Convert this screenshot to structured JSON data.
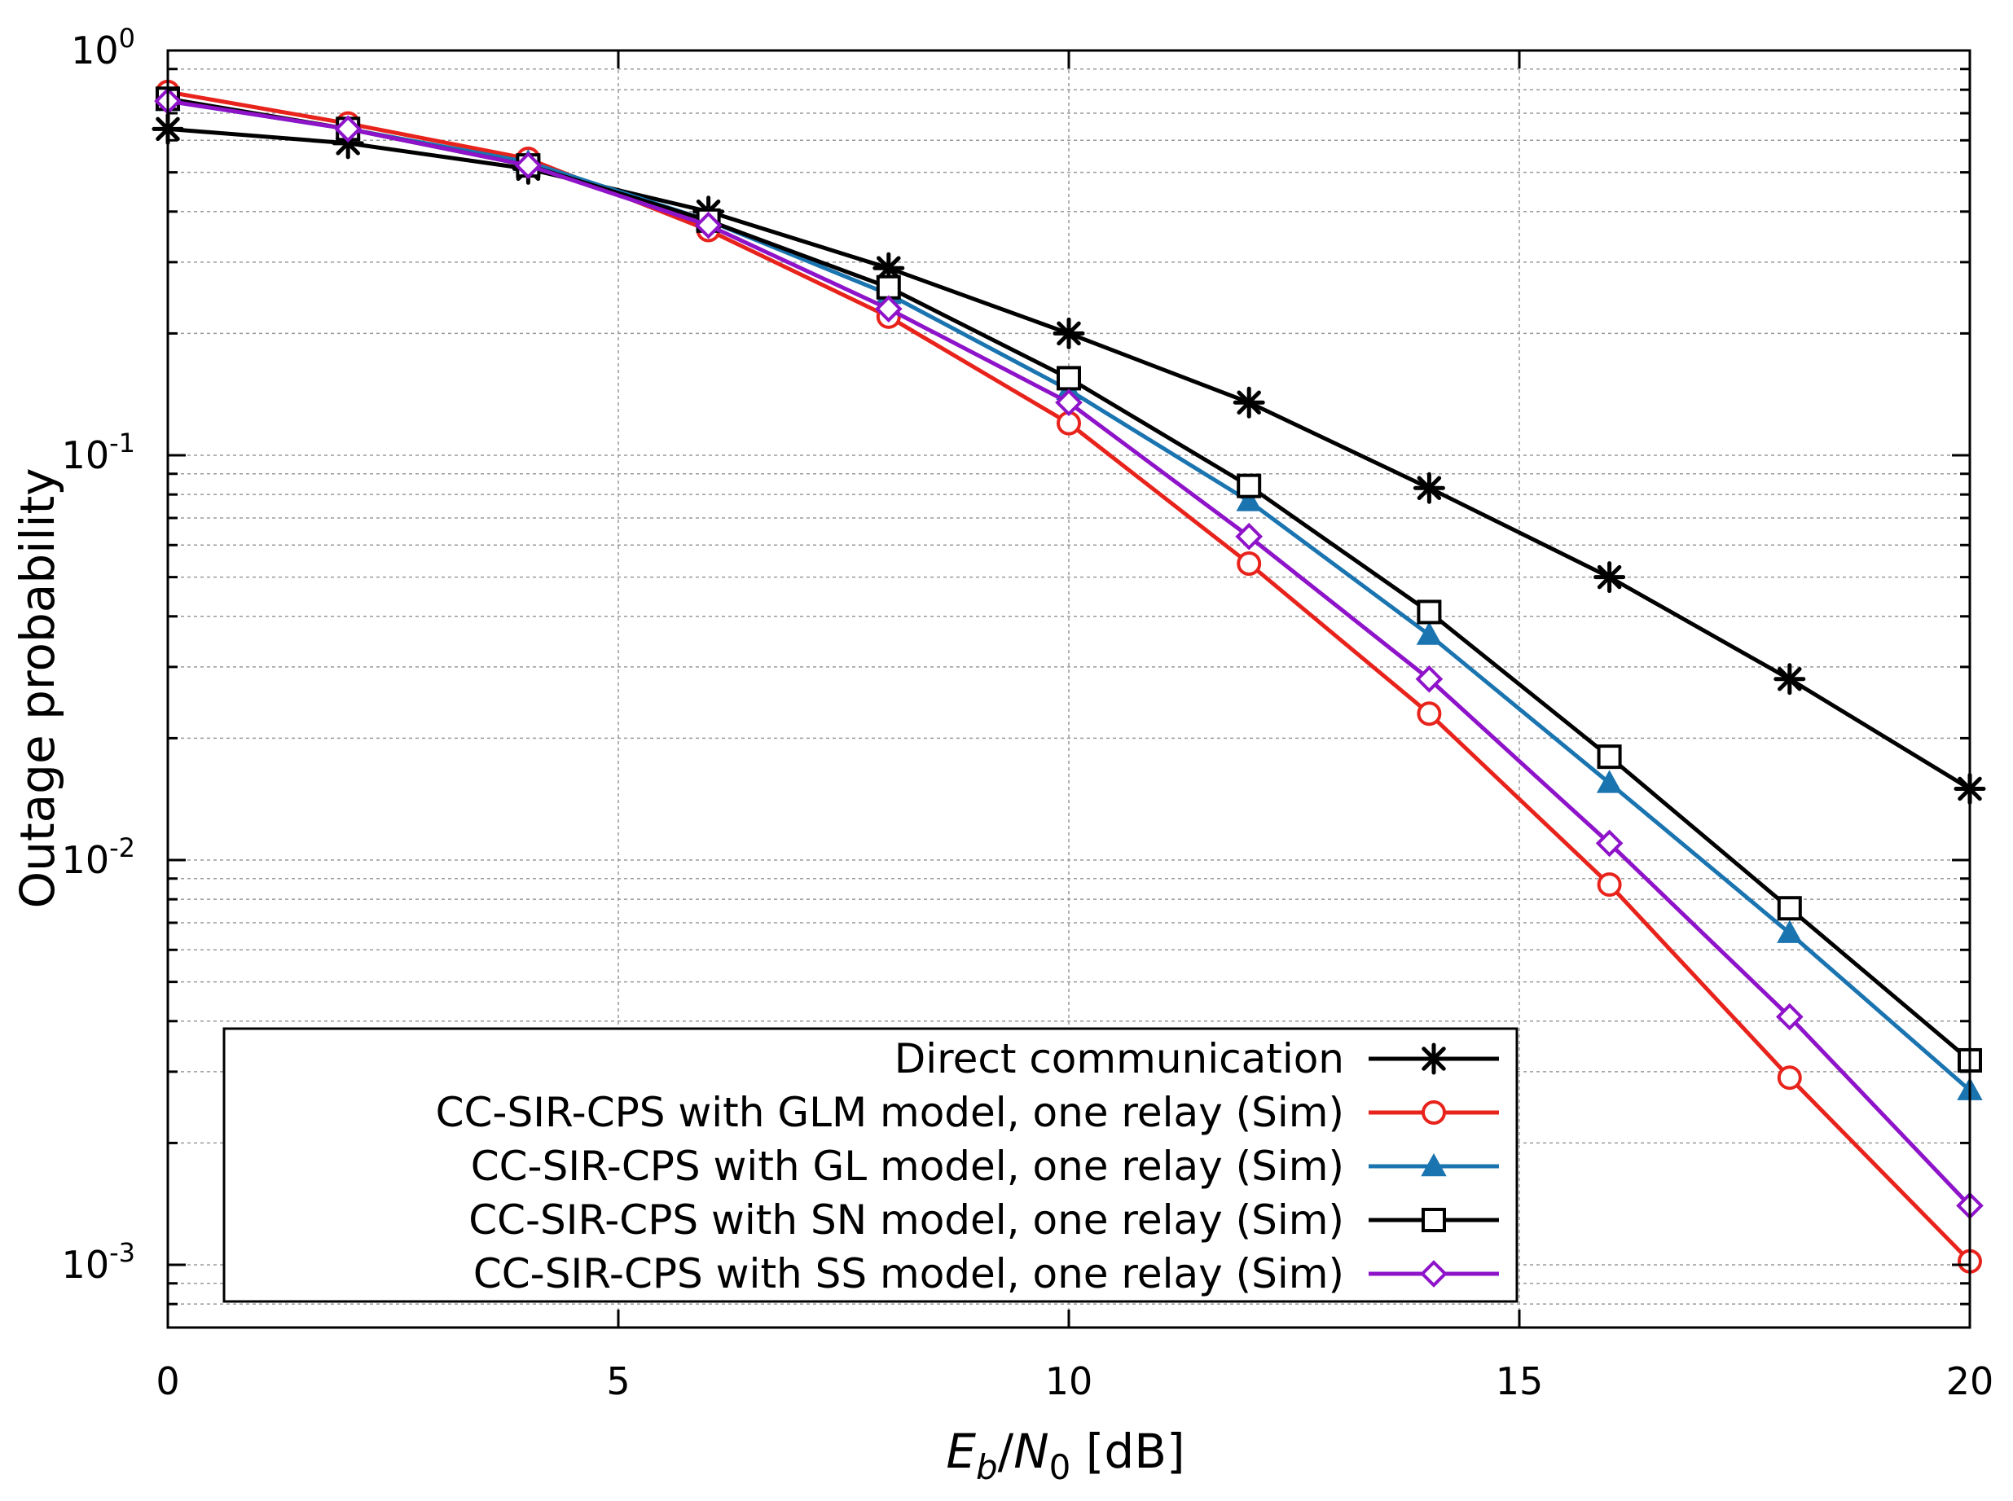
{
  "chart_data": {
    "type": "line",
    "title": "",
    "xlabel": {
      "E": "E",
      "b": "b",
      "slash": "/",
      "N": "N",
      "zero": "0",
      "unit": " [dB]"
    },
    "ylabel": "Outage probability",
    "xscale": "linear",
    "yscale": "log",
    "xlim": [
      0,
      20
    ],
    "ylim": [
      0.0007,
      1
    ],
    "xticks": [
      0,
      5,
      10,
      15,
      20
    ],
    "xtick_labels": [
      "0",
      "5",
      "10",
      "15",
      "20"
    ],
    "yticks": [
      {
        "value": 1,
        "base": "10",
        "exp": "0"
      },
      {
        "value": 0.1,
        "base": "10",
        "exp": "-1"
      },
      {
        "value": 0.01,
        "base": "10",
        "exp": "-2"
      },
      {
        "value": 0.001,
        "base": "10",
        "exp": "-3"
      }
    ],
    "grid": true,
    "legend_position": "bottom-center",
    "x": [
      0,
      2,
      4,
      6,
      8,
      10,
      12,
      14,
      16,
      18,
      20
    ],
    "series": [
      {
        "name": "Direct communication",
        "color": "#000000",
        "marker": "star",
        "values": [
          0.64,
          0.59,
          0.51,
          0.4,
          0.29,
          0.2,
          0.135,
          0.083,
          0.05,
          0.028,
          0.015
        ]
      },
      {
        "name": "CC-SIR-CPS with GLM model, one relay (Sim)",
        "color": "#e8231c",
        "marker": "circle",
        "values": [
          0.79,
          0.66,
          0.54,
          0.36,
          0.22,
          0.12,
          0.054,
          0.023,
          0.0087,
          0.0029,
          0.00102
        ]
      },
      {
        "name": "CC-SIR-CPS with GL model, one relay (Sim)",
        "color": "#1a74b0",
        "marker": "triangle",
        "values": [
          0.75,
          0.64,
          0.53,
          0.38,
          0.25,
          0.145,
          0.077,
          0.036,
          0.0155,
          0.0066,
          0.0027
        ]
      },
      {
        "name": "CC-SIR-CPS with SN model, one relay (Sim)",
        "color": "#000000",
        "marker": "square",
        "values": [
          0.76,
          0.64,
          0.52,
          0.38,
          0.26,
          0.155,
          0.084,
          0.041,
          0.018,
          0.0076,
          0.0032
        ]
      },
      {
        "name": "CC-SIR-CPS with SS model, one relay (Sim)",
        "color": "#8e13c9",
        "marker": "diamond",
        "values": [
          0.75,
          0.64,
          0.52,
          0.37,
          0.23,
          0.135,
          0.063,
          0.028,
          0.011,
          0.0041,
          0.0014
        ]
      }
    ]
  }
}
